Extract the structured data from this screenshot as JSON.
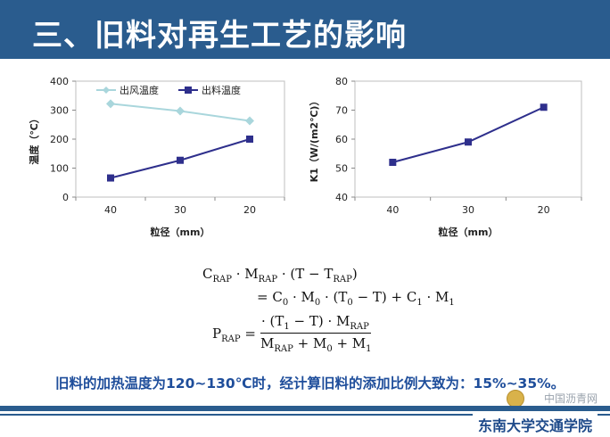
{
  "header": {
    "title": "三、旧料对再生工艺的影响"
  },
  "colors": {
    "header_bg": "#2a5c8e",
    "series_outlet": "#a9d6dc",
    "series_material": "#2e2f8c",
    "note_text": "#1f4e9b"
  },
  "chart_data": [
    {
      "type": "line",
      "categories": [
        "40",
        "30",
        "20"
      ],
      "series": [
        {
          "name": "出风温度",
          "values": [
            322,
            297,
            263
          ]
        },
        {
          "name": "出料温度",
          "values": [
            66,
            127,
            200
          ]
        }
      ],
      "xlabel": "粒径（mm）",
      "ylabel": "温度（℃）",
      "ylim": [
        0,
        400
      ],
      "yticks": [
        "0",
        "100",
        "200",
        "300",
        "400"
      ],
      "grid": false,
      "legend": "top"
    },
    {
      "type": "line",
      "categories": [
        "40",
        "30",
        "20"
      ],
      "series": [
        {
          "values": [
            52,
            59,
            71
          ]
        }
      ],
      "xlabel": "粒径（mm）",
      "ylabel": "K1（W/(m2℃)）",
      "ylim": [
        40,
        80
      ],
      "yticks": [
        "40",
        "50",
        "60",
        "70",
        "80"
      ],
      "grid": false
    }
  ],
  "formula": {
    "line1": "C_RAP · M_RAP · (T − T_RAP)",
    "line2": "= C_0 · M_0 · (T_0 − T) + C_1 · M_1",
    "numerator": "· (T_1 − T) · M_RAP",
    "lhs": "P_RAP =",
    "denominator": "M_RAP + M_0 + M_1"
  },
  "note": "旧料的加热温度为120~130℃时，经计算旧料的添加比例大致为：15%~35%。",
  "watermark": "中国沥青网",
  "footer": {
    "school": "东南大学交通学院"
  }
}
